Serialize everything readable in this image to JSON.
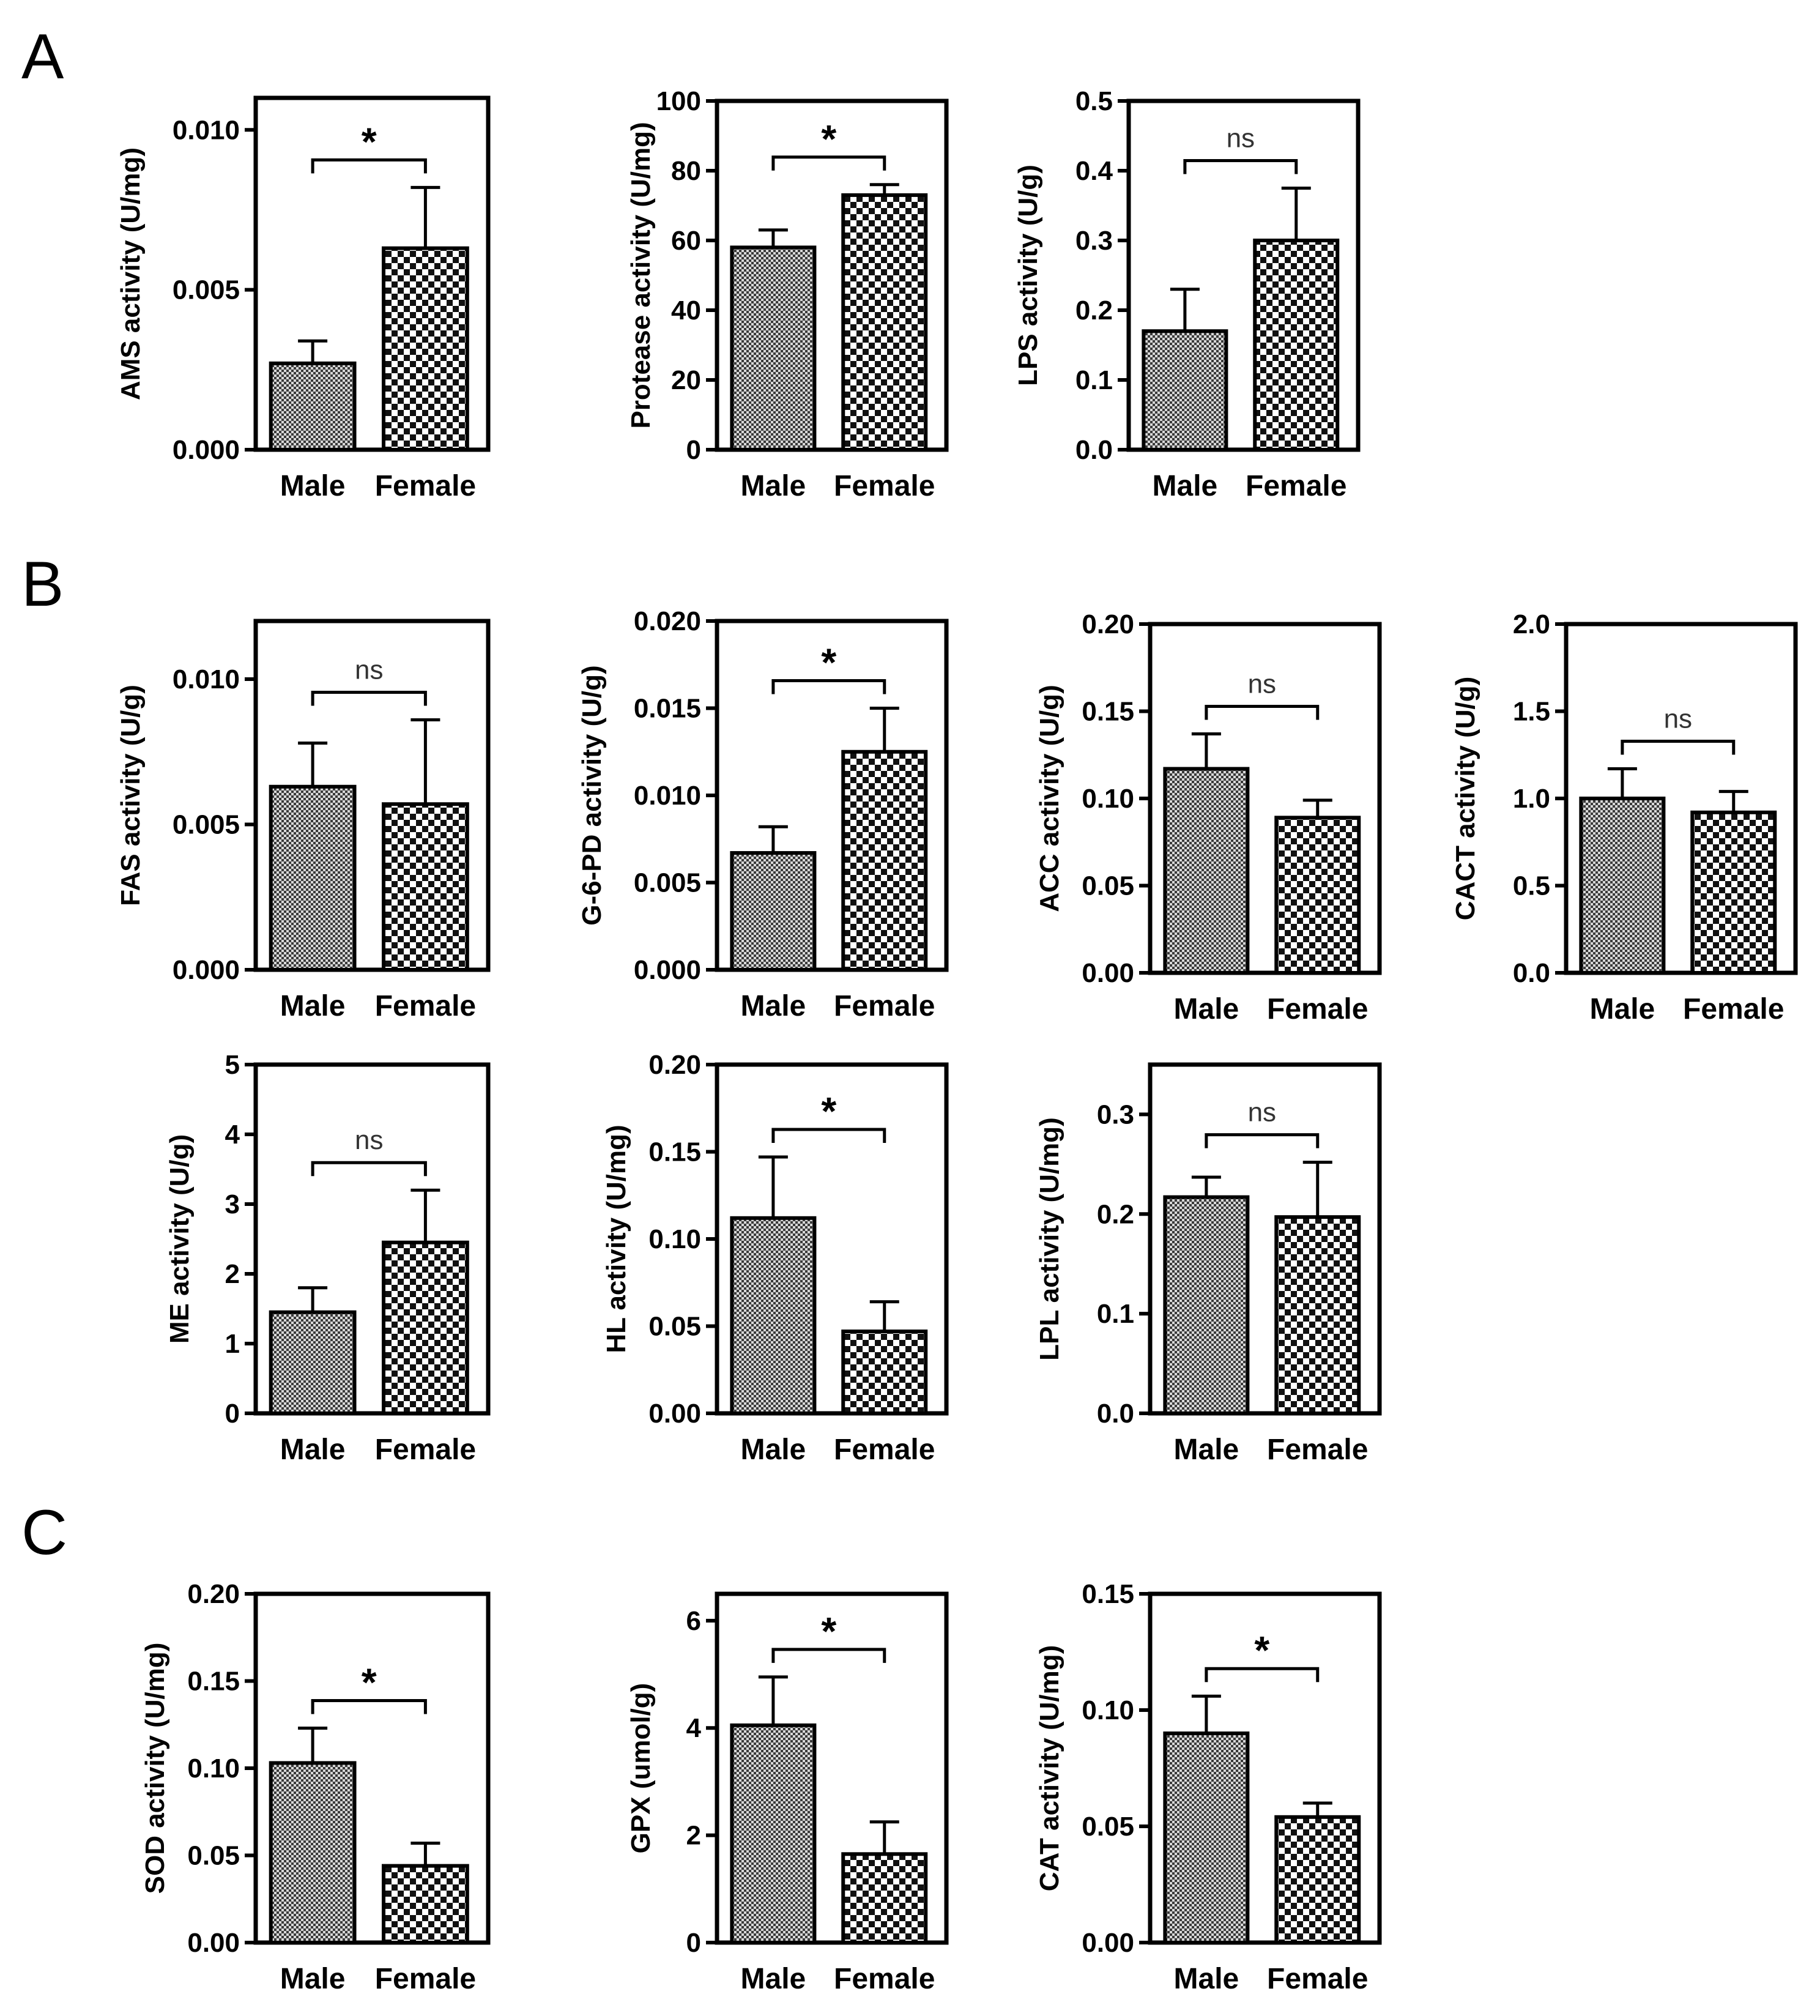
{
  "panels": [
    "A",
    "B",
    "C"
  ],
  "categories": [
    "Male",
    "Female"
  ],
  "chart_data": [
    {
      "id": "ams",
      "panel": "A",
      "type": "bar",
      "ylabel": "AMS activity (U/mg)",
      "ylim": [
        0,
        0.011
      ],
      "ticks": [
        "0.000",
        "0.005",
        "0.010"
      ],
      "tickValues": [
        0,
        0.005,
        0.01
      ],
      "categories": [
        "Male",
        "Female"
      ],
      "values": [
        0.0027,
        0.0063
      ],
      "errors": [
        0.0007,
        0.0019
      ],
      "significance": "*"
    },
    {
      "id": "protease",
      "panel": "A",
      "type": "bar",
      "ylabel": "Protease activity (U/mg)",
      "ylim": [
        0,
        100
      ],
      "ticks": [
        "0",
        "20",
        "40",
        "60",
        "80",
        "100"
      ],
      "tickValues": [
        0,
        20,
        40,
        60,
        80,
        100
      ],
      "categories": [
        "Male",
        "Female"
      ],
      "values": [
        58,
        73
      ],
      "errors": [
        5,
        3
      ],
      "significance": "*"
    },
    {
      "id": "lps",
      "panel": "A",
      "type": "bar",
      "ylabel": "LPS activity (U/g)",
      "ylim": [
        0,
        0.5
      ],
      "ticks": [
        "0.0",
        "0.1",
        "0.2",
        "0.3",
        "0.4",
        "0.5"
      ],
      "tickValues": [
        0,
        0.1,
        0.2,
        0.3,
        0.4,
        0.5
      ],
      "categories": [
        "Male",
        "Female"
      ],
      "values": [
        0.17,
        0.3
      ],
      "errors": [
        0.06,
        0.075
      ],
      "significance": "ns"
    },
    {
      "id": "fas",
      "panel": "B",
      "type": "bar",
      "ylabel": "FAS activity (U/g)",
      "ylim": [
        0,
        0.012
      ],
      "ticks": [
        "0.000",
        "0.005",
        "0.010"
      ],
      "tickValues": [
        0,
        0.005,
        0.01
      ],
      "categories": [
        "Male",
        "Female"
      ],
      "values": [
        0.0063,
        0.0057
      ],
      "errors": [
        0.0015,
        0.0029
      ],
      "significance": "ns"
    },
    {
      "id": "g6pd",
      "panel": "B",
      "type": "bar",
      "ylabel": "G-6-PD activity (U/g)",
      "ylim": [
        0,
        0.02
      ],
      "ticks": [
        "0.000",
        "0.005",
        "0.010",
        "0.015",
        "0.020"
      ],
      "tickValues": [
        0,
        0.005,
        0.01,
        0.015,
        0.02
      ],
      "categories": [
        "Male",
        "Female"
      ],
      "values": [
        0.0067,
        0.0125
      ],
      "errors": [
        0.0015,
        0.0025
      ],
      "significance": "*"
    },
    {
      "id": "acc",
      "panel": "B",
      "type": "bar",
      "ylabel": "ACC activity (U/g)",
      "ylim": [
        0,
        0.2
      ],
      "ticks": [
        "0.00",
        "0.05",
        "0.10",
        "0.15",
        "0.20"
      ],
      "tickValues": [
        0,
        0.05,
        0.1,
        0.15,
        0.2
      ],
      "categories": [
        "Male",
        "Female"
      ],
      "values": [
        0.117,
        0.089
      ],
      "errors": [
        0.02,
        0.01
      ],
      "significance": "ns"
    },
    {
      "id": "cact",
      "panel": "B",
      "type": "bar",
      "ylabel": "CACT activity (U/g)",
      "ylim": [
        0,
        2
      ],
      "ticks": [
        "0.0",
        "0.5",
        "1.0",
        "1.5",
        "2.0"
      ],
      "tickValues": [
        0,
        0.5,
        1,
        1.5,
        2
      ],
      "categories": [
        "Male",
        "Female"
      ],
      "values": [
        1.0,
        0.92
      ],
      "errors": [
        0.17,
        0.12
      ],
      "significance": "ns"
    },
    {
      "id": "me",
      "panel": "B",
      "type": "bar",
      "ylabel": "ME activity (U/g)",
      "ylim": [
        0,
        5
      ],
      "ticks": [
        "0",
        "1",
        "2",
        "3",
        "4",
        "5"
      ],
      "tickValues": [
        0,
        1,
        2,
        3,
        4,
        5
      ],
      "categories": [
        "Male",
        "Female"
      ],
      "values": [
        1.45,
        2.45
      ],
      "errors": [
        0.35,
        0.75
      ],
      "significance": "ns"
    },
    {
      "id": "hl",
      "panel": "B",
      "type": "bar",
      "ylabel": "HL activity (U/mg)",
      "ylim": [
        0,
        0.2
      ],
      "ticks": [
        "0.00",
        "0.05",
        "0.10",
        "0.15",
        "0.20"
      ],
      "tickValues": [
        0,
        0.05,
        0.1,
        0.15,
        0.2
      ],
      "categories": [
        "Male",
        "Female"
      ],
      "values": [
        0.112,
        0.047
      ],
      "errors": [
        0.035,
        0.017
      ],
      "significance": "*"
    },
    {
      "id": "lpl",
      "panel": "B",
      "type": "bar",
      "ylabel": "LPL activity (U/mg)",
      "ylim": [
        0,
        0.35
      ],
      "ticks": [
        "0.0",
        "0.1",
        "0.2",
        "0.3"
      ],
      "tickValues": [
        0,
        0.1,
        0.2,
        0.3
      ],
      "categories": [
        "Male",
        "Female"
      ],
      "values": [
        0.217,
        0.197
      ],
      "errors": [
        0.02,
        0.055
      ],
      "significance": "ns"
    },
    {
      "id": "sod",
      "panel": "C",
      "type": "bar",
      "ylabel": "SOD activity (U/mg)",
      "ylim": [
        0,
        0.2
      ],
      "ticks": [
        "0.00",
        "0.05",
        "0.10",
        "0.15",
        "0.20"
      ],
      "tickValues": [
        0,
        0.05,
        0.1,
        0.15,
        0.2
      ],
      "categories": [
        "Male",
        "Female"
      ],
      "values": [
        0.103,
        0.044
      ],
      "errors": [
        0.02,
        0.013
      ],
      "significance": "*"
    },
    {
      "id": "gpx",
      "panel": "C",
      "type": "bar",
      "ylabel": "GPX (umol/g)",
      "ylim": [
        0,
        6.5
      ],
      "ticks": [
        "0",
        "2",
        "4",
        "6"
      ],
      "tickValues": [
        0,
        2,
        4,
        6
      ],
      "categories": [
        "Male",
        "Female"
      ],
      "values": [
        4.05,
        1.65
      ],
      "errors": [
        0.9,
        0.6
      ],
      "significance": "*"
    },
    {
      "id": "cat",
      "panel": "C",
      "type": "bar",
      "ylabel": "CAT activity (U/mg)",
      "ylim": [
        0,
        0.15
      ],
      "ticks": [
        "0.00",
        "0.05",
        "0.10",
        "0.15"
      ],
      "tickValues": [
        0,
        0.05,
        0.1,
        0.15
      ],
      "categories": [
        "Male",
        "Female"
      ],
      "values": [
        0.09,
        0.054
      ],
      "errors": [
        0.016,
        0.006
      ],
      "significance": "*"
    }
  ]
}
